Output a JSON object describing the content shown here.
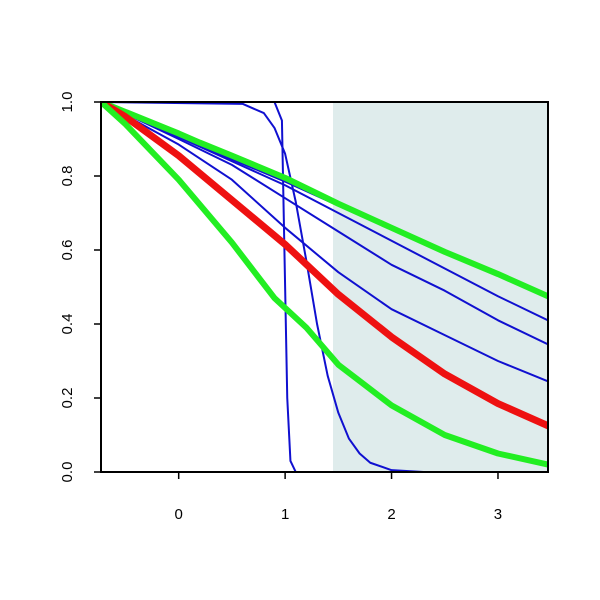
{
  "chart_data": {
    "type": "line",
    "title": "",
    "xlabel": "",
    "ylabel": "",
    "xlim": [
      -0.73,
      3.47
    ],
    "ylim": [
      0,
      1
    ],
    "grid": false,
    "x_ticks": [
      0,
      1,
      2,
      3
    ],
    "x_tick_labels": [
      "0",
      "1",
      "2",
      "3"
    ],
    "y_ticks": [
      0,
      0.2,
      0.4,
      0.6,
      0.8,
      1
    ],
    "y_tick_labels": [
      "0.0",
      "0.2",
      "0.4",
      "0.6",
      "0.8",
      "1.0"
    ],
    "shaded_region": {
      "x_from": 1.45,
      "x_to": 3.47,
      "color": "#dfecec"
    },
    "series": [
      {
        "color": "#1010d0",
        "width": 2,
        "points": [
          [
            -0.73,
            1.0
          ],
          [
            0.9,
            1.0
          ],
          [
            0.97,
            0.95
          ],
          [
            1.0,
            0.5
          ],
          [
            1.02,
            0.2
          ],
          [
            1.05,
            0.03
          ],
          [
            1.1,
            0.0
          ],
          [
            3.47,
            0.0
          ]
        ]
      },
      {
        "color": "#1010d0",
        "width": 2,
        "points": [
          [
            -0.73,
            1.0
          ],
          [
            0.6,
            0.995
          ],
          [
            0.8,
            0.97
          ],
          [
            0.9,
            0.93
          ],
          [
            1.0,
            0.86
          ],
          [
            1.1,
            0.73
          ],
          [
            1.2,
            0.57
          ],
          [
            1.3,
            0.4
          ],
          [
            1.4,
            0.26
          ],
          [
            1.5,
            0.16
          ],
          [
            1.6,
            0.09
          ],
          [
            1.7,
            0.05
          ],
          [
            1.8,
            0.025
          ],
          [
            2.0,
            0.005
          ],
          [
            2.3,
            0.0
          ],
          [
            3.47,
            0.0
          ]
        ]
      },
      {
        "color": "#1010d0",
        "width": 2,
        "points": [
          [
            -0.73,
            1.0
          ],
          [
            0.0,
            0.885
          ],
          [
            0.5,
            0.79
          ],
          [
            1.0,
            0.66
          ],
          [
            1.5,
            0.54
          ],
          [
            2.0,
            0.44
          ],
          [
            2.5,
            0.37
          ],
          [
            3.0,
            0.3
          ],
          [
            3.47,
            0.245
          ]
        ]
      },
      {
        "color": "#1010d0",
        "width": 2,
        "points": [
          [
            -0.73,
            1.0
          ],
          [
            0.0,
            0.9
          ],
          [
            0.5,
            0.83
          ],
          [
            1.0,
            0.74
          ],
          [
            1.5,
            0.65
          ],
          [
            2.0,
            0.56
          ],
          [
            2.5,
            0.49
          ],
          [
            3.0,
            0.41
          ],
          [
            3.47,
            0.345
          ]
        ]
      },
      {
        "color": "#1010d0",
        "width": 2,
        "points": [
          [
            -0.73,
            1.0
          ],
          [
            0.0,
            0.905
          ],
          [
            0.5,
            0.84
          ],
          [
            1.0,
            0.775
          ],
          [
            1.5,
            0.7
          ],
          [
            2.0,
            0.625
          ],
          [
            2.5,
            0.55
          ],
          [
            3.0,
            0.475
          ],
          [
            3.47,
            0.41
          ]
        ]
      },
      {
        "color": "#1010d0",
        "width": 2,
        "points": [
          [
            -0.73,
            1.0
          ],
          [
            0.0,
            0.91
          ],
          [
            0.5,
            0.845
          ],
          [
            1.0,
            0.785
          ],
          [
            1.5,
            0.72
          ],
          [
            2.0,
            0.655
          ],
          [
            2.5,
            0.595
          ],
          [
            3.0,
            0.535
          ],
          [
            3.47,
            0.475
          ]
        ]
      },
      {
        "color": "#22ee22",
        "width": 6,
        "points": [
          [
            -0.73,
            1.0
          ],
          [
            0.0,
            0.915
          ],
          [
            0.2,
            0.89
          ],
          [
            0.5,
            0.855
          ],
          [
            1.0,
            0.795
          ],
          [
            1.5,
            0.725
          ],
          [
            2.0,
            0.66
          ],
          [
            2.5,
            0.595
          ],
          [
            3.0,
            0.535
          ],
          [
            3.47,
            0.475
          ]
        ]
      },
      {
        "color": "#ee1111",
        "width": 7,
        "points": [
          [
            -0.73,
            1.0
          ],
          [
            -0.5,
            0.96
          ],
          [
            0.0,
            0.855
          ],
          [
            0.5,
            0.735
          ],
          [
            1.0,
            0.615
          ],
          [
            1.5,
            0.48
          ],
          [
            2.0,
            0.365
          ],
          [
            2.5,
            0.265
          ],
          [
            3.0,
            0.185
          ],
          [
            3.47,
            0.125
          ]
        ]
      },
      {
        "color": "#22ee22",
        "width": 6,
        "points": [
          [
            -0.73,
            1.0
          ],
          [
            -0.5,
            0.94
          ],
          [
            0.0,
            0.79
          ],
          [
            0.5,
            0.62
          ],
          [
            0.9,
            0.47
          ],
          [
            1.2,
            0.39
          ],
          [
            1.5,
            0.29
          ],
          [
            2.0,
            0.18
          ],
          [
            2.5,
            0.1
          ],
          [
            3.0,
            0.05
          ],
          [
            3.47,
            0.02
          ]
        ]
      }
    ]
  }
}
